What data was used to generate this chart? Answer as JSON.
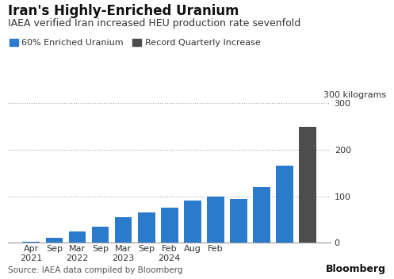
{
  "title": "Iran's Highly-Enriched Uranium",
  "subtitle": "IAEA verified Iran increased HEU production rate sevenfold",
  "legend_blue": "60% Enriched Uranium",
  "legend_gray": "Record Quarterly Increase",
  "kg_label": "300 kilograms",
  "source": "Source: IAEA data compiled by Bloomberg",
  "bloomberg": "Bloomberg",
  "values": [
    2,
    10,
    25,
    35,
    55,
    65,
    75,
    90,
    100,
    95,
    120,
    165,
    250
  ],
  "bar_colors": [
    "#2b7bcc",
    "#2b7bcc",
    "#2b7bcc",
    "#2b7bcc",
    "#2b7bcc",
    "#2b7bcc",
    "#2b7bcc",
    "#2b7bcc",
    "#2b7bcc",
    "#2b7bcc",
    "#2b7bcc",
    "#2b7bcc",
    "#4d4d4d"
  ],
  "blue_color": "#2b7bcc",
  "gray_color": "#4d4d4d",
  "ylim": [
    0,
    300
  ],
  "yticks": [
    0,
    100,
    200,
    300
  ],
  "tick_labels": [
    "Apr\n2021",
    "Sep",
    "Mar\n2022",
    "Sep",
    "Mar\n2023",
    "Sep",
    "Feb\n2024",
    "Aug",
    "Feb",
    "",
    "",
    "",
    ""
  ],
  "background_color": "#ffffff",
  "title_fontsize": 12,
  "subtitle_fontsize": 9,
  "legend_fontsize": 8,
  "tick_fontsize": 8,
  "source_fontsize": 7.5,
  "bloomberg_fontsize": 9
}
